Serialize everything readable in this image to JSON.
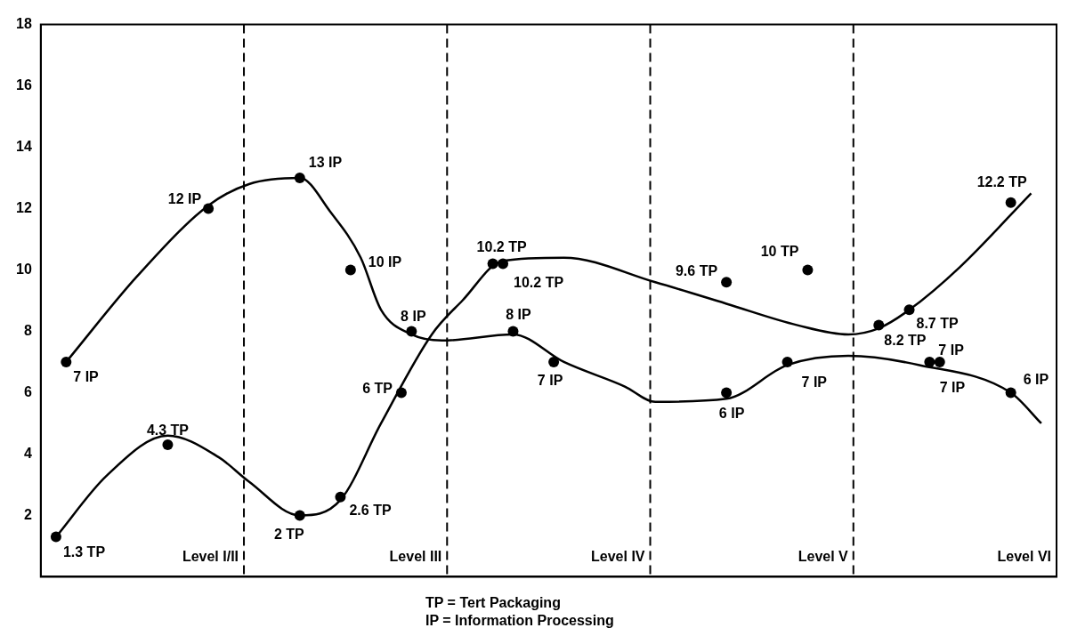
{
  "chart_data": {
    "type": "line",
    "categories": [
      null,
      null,
      null,
      null,
      null,
      null,
      null,
      null,
      null,
      null,
      null,
      null,
      null,
      null,
      null,
      null,
      null,
      null,
      null,
      null,
      null,
      null,
      null,
      null,
      null,
      null,
      null,
      null,
      null,
      null,
      null,
      null,
      null,
      null,
      null,
      null,
      null,
      null,
      null,
      null,
      null,
      null,
      null,
      null,
      null,
      null,
      null,
      null,
      null,
      null,
      null,
      null,
      null,
      null,
      null,
      null,
      null,
      null,
      null,
      null,
      null,
      null,
      null,
      null,
      null,
      null,
      null,
      null,
      null,
      null,
      null,
      null,
      null,
      null,
      null,
      null,
      null,
      null,
      null,
      null,
      null,
      null,
      null,
      null,
      null,
      null,
      null,
      null,
      null,
      null,
      null,
      null,
      null,
      null,
      null,
      null,
      null,
      null,
      null,
      null
    ],
    "ylim": [
      0,
      18
    ],
    "yticks": [
      2,
      4,
      6,
      8,
      10,
      12,
      14,
      16,
      18
    ],
    "tick_labels": "y",
    "series": [
      {
        "type": "scatter",
        "marker": "circle",
        "color": "#000000",
        "values": [
          null,
          1.3,
          null,
          null,
          null,
          null,
          null,
          null,
          null,
          null,
          null,
          null,
          4.3,
          null,
          null,
          null,
          null,
          null,
          null,
          null,
          null,
          null,
          null,
          null,
          null,
          2,
          null,
          null,
          null,
          2.6,
          null,
          null,
          null,
          null,
          null,
          6,
          null,
          null,
          null,
          null,
          null,
          null,
          null,
          null,
          10.2,
          10.2,
          null,
          null,
          null,
          null,
          null,
          null,
          null,
          null,
          null,
          null,
          null,
          null,
          null,
          null,
          null,
          null,
          null,
          null,
          null,
          null,
          null,
          9.6,
          null,
          null,
          null,
          null,
          null,
          null,
          null,
          10,
          null,
          null,
          null,
          null,
          null,
          null,
          8.2,
          null,
          null,
          8.7,
          null,
          null,
          null,
          null,
          null,
          null,
          null,
          null,
          null,
          12.2,
          null,
          null,
          null,
          null
        ],
        "value_labels": [
          null,
          "1.3 TP",
          null,
          null,
          null,
          null,
          null,
          null,
          null,
          null,
          null,
          null,
          "4.3 TP",
          null,
          null,
          null,
          null,
          null,
          null,
          null,
          null,
          null,
          null,
          null,
          null,
          "2 TP",
          null,
          null,
          null,
          "2.6 TP",
          null,
          null,
          null,
          null,
          null,
          "6 TP",
          null,
          null,
          null,
          null,
          null,
          null,
          null,
          null,
          "10.2 TP",
          "10.2 TP",
          null,
          null,
          null,
          null,
          null,
          null,
          null,
          null,
          null,
          null,
          null,
          null,
          null,
          null,
          null,
          null,
          null,
          null,
          null,
          null,
          null,
          "9.6 TP",
          null,
          null,
          null,
          null,
          null,
          null,
          null,
          "10 TP",
          null,
          null,
          null,
          null,
          null,
          null,
          "8.2 TP",
          null,
          null,
          "8.7 TP",
          null,
          null,
          null,
          null,
          null,
          null,
          null,
          null,
          null,
          "12.2 TP",
          null,
          null,
          null,
          null
        ]
      },
      {
        "marker": "none",
        "line_style": "solid",
        "color": "#000000",
        "values": [
          null,
          1.3,
          null,
          null,
          null,
          null,
          3.3,
          null,
          null,
          null,
          null,
          null,
          4.6,
          null,
          null,
          null,
          null,
          3.9,
          null,
          null,
          3.1,
          null,
          null,
          null,
          null,
          2.0,
          null,
          null,
          null,
          2.5,
          null,
          null,
          null,
          5.0,
          null,
          null,
          null,
          null,
          7.9,
          null,
          null,
          9.0,
          null,
          null,
          null,
          10.3,
          null,
          null,
          null,
          null,
          null,
          10.4,
          null,
          null,
          null,
          null,
          null,
          null,
          null,
          null,
          9.6,
          null,
          null,
          null,
          null,
          null,
          null,
          8.9,
          null,
          null,
          null,
          null,
          null,
          null,
          8.2,
          null,
          null,
          null,
          null,
          7.9,
          null,
          null,
          8.1,
          null,
          null,
          8.7,
          null,
          null,
          null,
          null,
          10.1,
          null,
          null,
          null,
          null,
          null,
          null,
          12.5,
          null,
          null
        ]
      },
      {
        "type": "scatter",
        "marker": "circle",
        "color": "#000000",
        "values": [
          null,
          null,
          7,
          null,
          null,
          null,
          null,
          null,
          null,
          null,
          null,
          null,
          null,
          null,
          null,
          null,
          12,
          null,
          null,
          null,
          null,
          null,
          null,
          null,
          null,
          13,
          null,
          null,
          null,
          null,
          10,
          null,
          null,
          null,
          null,
          null,
          8,
          null,
          null,
          null,
          null,
          null,
          null,
          null,
          null,
          null,
          8,
          null,
          null,
          null,
          7,
          null,
          null,
          null,
          null,
          null,
          null,
          null,
          null,
          null,
          null,
          null,
          null,
          null,
          null,
          null,
          null,
          6,
          null,
          null,
          null,
          null,
          null,
          7,
          null,
          null,
          null,
          null,
          null,
          null,
          null,
          null,
          null,
          null,
          null,
          null,
          null,
          7,
          7,
          null,
          null,
          null,
          null,
          null,
          null,
          6,
          null,
          null,
          null,
          null
        ],
        "value_labels": [
          null,
          null,
          "7 IP",
          null,
          null,
          null,
          null,
          null,
          null,
          null,
          null,
          null,
          null,
          null,
          null,
          null,
          "12 IP",
          null,
          null,
          null,
          null,
          null,
          null,
          null,
          null,
          "13 IP",
          null,
          null,
          null,
          null,
          "10 IP",
          null,
          null,
          null,
          null,
          null,
          "8 IP",
          null,
          null,
          null,
          null,
          null,
          null,
          null,
          null,
          null,
          "8 IP",
          null,
          null,
          null,
          "7 IP",
          null,
          null,
          null,
          null,
          null,
          null,
          null,
          null,
          null,
          null,
          null,
          null,
          null,
          null,
          null,
          null,
          "6 IP",
          null,
          null,
          null,
          null,
          null,
          "7 IP",
          null,
          null,
          null,
          null,
          null,
          null,
          null,
          null,
          null,
          null,
          null,
          null,
          null,
          "7 IP",
          "7 IP",
          null,
          null,
          null,
          null,
          null,
          null,
          "6 IP",
          null,
          null,
          null,
          null
        ]
      },
      {
        "marker": "none",
        "line_style": "solid",
        "color": "#000000",
        "values": [
          null,
          null,
          7.0,
          null,
          null,
          null,
          null,
          null,
          null,
          9.8,
          null,
          null,
          null,
          null,
          null,
          null,
          12.1,
          null,
          null,
          null,
          12.8,
          null,
          null,
          null,
          null,
          13.0,
          null,
          null,
          11.9,
          null,
          null,
          10.4,
          null,
          8.7,
          null,
          null,
          7.9,
          null,
          null,
          7.7,
          null,
          null,
          null,
          null,
          null,
          null,
          7.9,
          null,
          null,
          null,
          null,
          7.0,
          null,
          null,
          null,
          null,
          null,
          6.2,
          null,
          null,
          5.7,
          null,
          null,
          null,
          null,
          null,
          null,
          5.8,
          null,
          null,
          null,
          null,
          null,
          6.9,
          null,
          null,
          null,
          null,
          null,
          7.2,
          null,
          null,
          null,
          null,
          null,
          null,
          6.9,
          null,
          null,
          null,
          null,
          null,
          null,
          null,
          null,
          6,
          null,
          null,
          5.0,
          null
        ]
      }
    ],
    "grid": "x",
    "annotations": [
      "Level I/II",
      "Level III",
      "Level IV",
      "Level V",
      "Level VI",
      "TP = Tert Packaging",
      "IP = Information Processing"
    ]
  }
}
